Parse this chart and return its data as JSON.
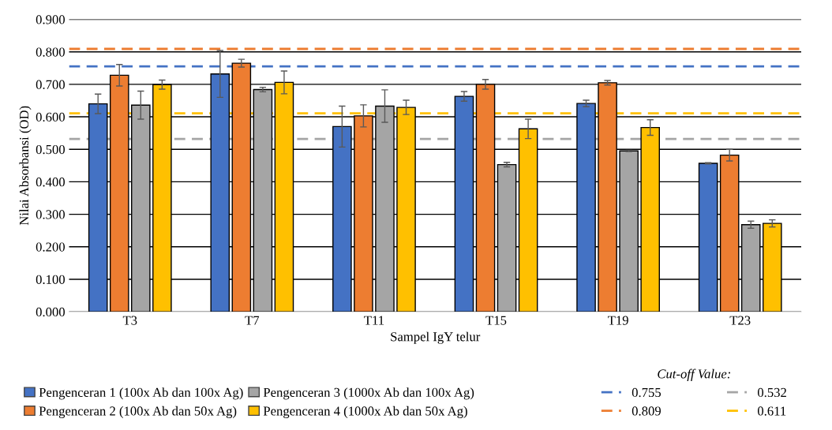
{
  "chart_data": {
    "type": "bar",
    "xlabel": "Sampel IgY telur",
    "ylabel": "Nilai Absorbansi (OD)",
    "categories": [
      "T3",
      "T7",
      "T11",
      "T15",
      "T19",
      "T23"
    ],
    "series": [
      {
        "name": "Pengenceran 1 (100x Ab dan 100x Ag)",
        "color": "#4472c4",
        "values": [
          0.64,
          0.732,
          0.57,
          0.663,
          0.641,
          0.457
        ],
        "errors": [
          0.03,
          0.072,
          0.063,
          0.015,
          0.01,
          0.002
        ]
      },
      {
        "name": "Pengenceran 2 (100x Ab dan 50x Ag)",
        "color": "#ed7d31",
        "values": [
          0.728,
          0.765,
          0.603,
          0.7,
          0.705,
          0.482
        ],
        "errors": [
          0.033,
          0.012,
          0.034,
          0.015,
          0.007,
          0.018
        ]
      },
      {
        "name": "Pengenceran 3 (1000x Ab dan 100x Ag)",
        "color": "#a5a5a5",
        "values": [
          0.636,
          0.684,
          0.633,
          0.453,
          0.495,
          0.268
        ],
        "errors": [
          0.043,
          0.007,
          0.05,
          0.007,
          0.002,
          0.011
        ]
      },
      {
        "name": "Pengenceran 4 (1000x Ab dan 50x Ag)",
        "color": "#ffc000",
        "values": [
          0.699,
          0.706,
          0.629,
          0.563,
          0.567,
          0.272
        ],
        "errors": [
          0.014,
          0.035,
          0.022,
          0.03,
          0.024,
          0.011
        ]
      }
    ],
    "ylim": [
      0,
      0.9
    ],
    "yticks": [
      {
        "value": 0,
        "label": "0.000"
      },
      {
        "value": 0.1,
        "label": "0.100"
      },
      {
        "value": 0.2,
        "label": "0.200"
      },
      {
        "value": 0.3,
        "label": "0.300"
      },
      {
        "value": 0.4,
        "label": "0.400"
      },
      {
        "value": 0.5,
        "label": "0.500"
      },
      {
        "value": 0.6,
        "label": "0.600"
      },
      {
        "value": 0.7,
        "label": "0.700"
      },
      {
        "value": 0.8,
        "label": "0.800"
      },
      {
        "value": 0.9,
        "label": "0.900"
      }
    ],
    "grid": "y",
    "legend": "bottom",
    "legend_title": "Cut-off Value:",
    "ref_lines": [
      {
        "axis": "y",
        "value": 0.755,
        "label": "0.755",
        "color": "#4472c4",
        "line_style": "dashed"
      },
      {
        "axis": "y",
        "value": 0.809,
        "label": "0.809",
        "color": "#ed7d31",
        "line_style": "dashed"
      },
      {
        "axis": "y",
        "value": 0.532,
        "label": "0.532",
        "color": "#a5a5a5",
        "line_style": "dashed"
      },
      {
        "axis": "y",
        "value": 0.611,
        "label": "0.611",
        "color": "#ffc000",
        "line_style": "dashed"
      }
    ]
  }
}
